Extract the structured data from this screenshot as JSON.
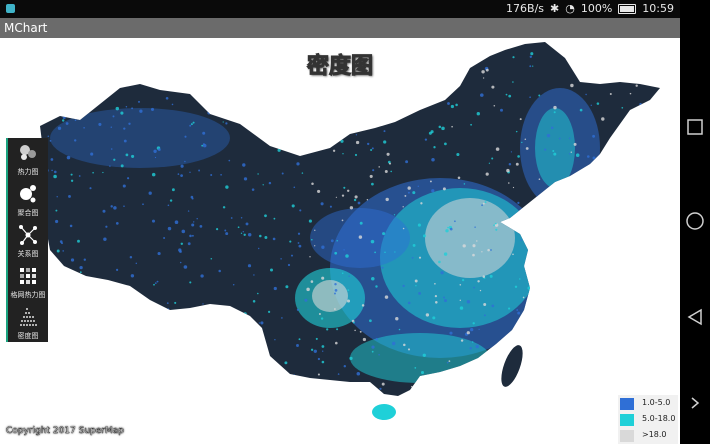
{
  "status_bar": {
    "network_speed": "176B/s",
    "battery": "100%",
    "time": "10:59",
    "icons": [
      "app-icon",
      "bluetooth-icon",
      "wifi-icon",
      "battery-icon"
    ]
  },
  "app": {
    "title": "MChart"
  },
  "map": {
    "title": "密度图"
  },
  "toolbar": {
    "items": [
      {
        "label": "热力图",
        "icon": "heatmap-icon"
      },
      {
        "label": "聚合图",
        "icon": "cluster-icon"
      },
      {
        "label": "关系图",
        "icon": "relation-icon"
      },
      {
        "label": "格网热力图",
        "icon": "grid-heatmap-icon"
      },
      {
        "label": "密度图",
        "icon": "density-icon"
      }
    ]
  },
  "legend": {
    "items": [
      {
        "label": "1.0-5.0",
        "color": "#2f6fd6"
      },
      {
        "label": "5.0-18.0",
        "color": "#1fd0d8"
      },
      {
        "label": ">18.0",
        "color": "#d9d9d9"
      }
    ]
  },
  "copyright": "Copyright 2017 SuperMap",
  "nav_bar": {
    "buttons": [
      "recents-button",
      "home-button",
      "back-button",
      "expand-button"
    ]
  },
  "colors": {
    "land": "#1e2b3c",
    "background": "#ffffff",
    "low": "#2f6fd6",
    "mid": "#1fd0d8",
    "high": "#d9d9d9"
  }
}
